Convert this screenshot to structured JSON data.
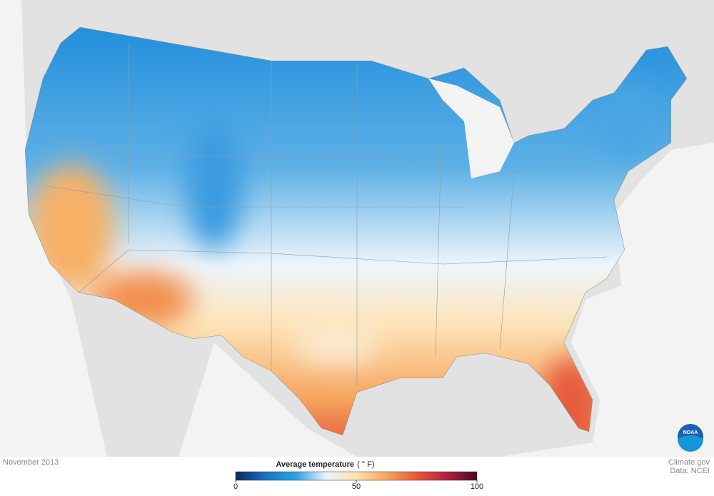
{
  "footer": {
    "date": "November 2013",
    "credit": "Climate.gov",
    "source": "Data: NCEI"
  },
  "logo": {
    "text": "NOAA"
  },
  "legend": {
    "title": "Average temperature",
    "unit": "( ° F)",
    "range": [
      0,
      100
    ],
    "ticks": [
      0,
      50,
      100
    ],
    "colors": [
      "#08275e",
      "#1c73c4",
      "#2aa3e6",
      "#eaf3fb",
      "#fde2b0",
      "#f7a55a",
      "#e9573a",
      "#b51e3f",
      "#4a0826"
    ]
  }
}
